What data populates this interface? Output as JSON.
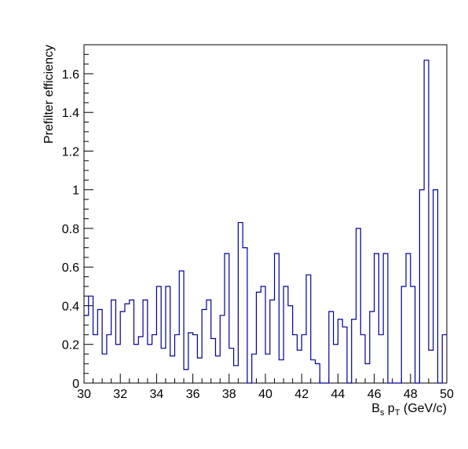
{
  "chart_data": {
    "type": "histogram",
    "xlabel": {
      "base": "B",
      "sub1": "s",
      "mid": " p",
      "sub2": "T",
      "tail": " (GeV/c)"
    },
    "ylabel": "Prefilter efficiency",
    "xlim": [
      30,
      50
    ],
    "ylim": [
      0,
      1.75
    ],
    "bin_width": 0.25,
    "x_ticks": [
      30,
      32,
      34,
      36,
      38,
      40,
      42,
      44,
      46,
      48,
      50
    ],
    "x_tick_labels": [
      "30",
      "32",
      "34",
      "36",
      "38",
      "40",
      "42",
      "44",
      "46",
      "48",
      "50"
    ],
    "y_ticks": [
      0,
      0.2,
      0.4,
      0.6,
      0.8,
      1,
      1.2,
      1.4,
      1.6
    ],
    "y_tick_labels": [
      "0",
      "0.2",
      "0.4",
      "0.6",
      "0.8",
      "1",
      "1.2",
      "1.4",
      "1.6"
    ],
    "line_color": "#000099",
    "values": [
      0.35,
      0.45,
      0.25,
      0.38,
      0.15,
      0.25,
      0.43,
      0.2,
      0.37,
      0.41,
      0.43,
      0.2,
      0.24,
      0.43,
      0.2,
      0.25,
      0.5,
      0.18,
      0.5,
      0.14,
      0.25,
      0.58,
      0.07,
      0.26,
      0.25,
      0.13,
      0.38,
      0.43,
      0.23,
      0.14,
      0.35,
      0.67,
      0.18,
      0.09,
      0.83,
      0.7,
      0.0,
      0.15,
      0.47,
      0.5,
      0.15,
      0.43,
      0.67,
      0.12,
      0.5,
      0.4,
      0.25,
      0.17,
      0.25,
      0.56,
      0.12,
      0.1,
      0.0,
      0.0,
      0.37,
      0.2,
      0.33,
      0.29,
      0.0,
      0.33,
      0.8,
      0.25,
      0.1,
      0.37,
      0.67,
      0.25,
      0.67,
      0.0,
      0.0,
      0.0,
      0.5,
      0.67,
      0.5,
      0.0,
      1.0,
      1.67,
      0.17,
      1.0,
      0.0,
      0.25
    ]
  }
}
